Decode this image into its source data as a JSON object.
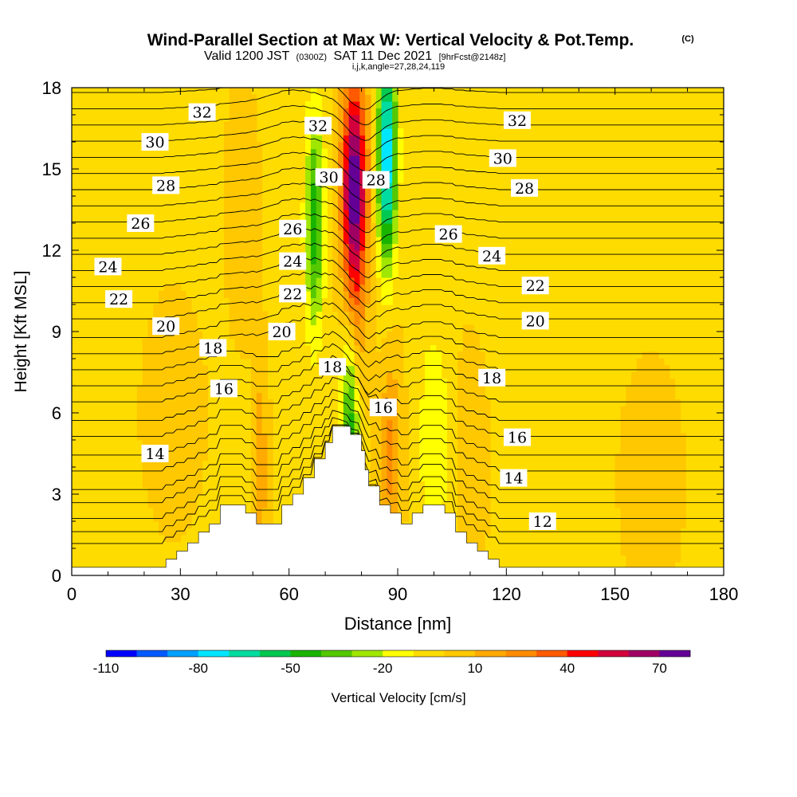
{
  "header": {
    "title": "Wind-Parallel Section at Max W: Vertical Velocity & Pot.Temp.",
    "copyright": "(C)",
    "valid_prefix": "Valid 1200 JST",
    "valid_utc": "(0300Z)",
    "valid_date": "SAT 11 Dec 2021",
    "forecast": "[9hrFcst@2148z]",
    "indices": "i,j,k,angle=27,28,24,119"
  },
  "colorbar": {
    "label": "Vertical Velocity [cm/s]",
    "tick_labels": [
      "-110",
      "-80",
      "-50",
      "-20",
      "10",
      "40",
      "70"
    ],
    "tick_values": [
      -110,
      -80,
      -50,
      -20,
      10,
      40,
      70
    ],
    "levels": [
      -110,
      -100,
      -90,
      -80,
      -70,
      -60,
      -50,
      -40,
      -30,
      -20,
      -10,
      0,
      10,
      20,
      30,
      40,
      50,
      60,
      70,
      80
    ],
    "colors": [
      "#0000ff",
      "#005aff",
      "#00a0ff",
      "#00e6ff",
      "#00dca0",
      "#00c850",
      "#19b400",
      "#55c800",
      "#a0e600",
      "#ffff00",
      "#ffdc00",
      "#ffc800",
      "#ffaa00",
      "#ff8c00",
      "#ff5a00",
      "#ff0000",
      "#d2003c",
      "#a00064",
      "#640096"
    ]
  },
  "chart_data": {
    "type": "contour",
    "title": "Wind-Parallel Section at Max W: Vertical Velocity & Pot.Temp.",
    "xlabel": "Distance [nm]",
    "ylabel": "Height [Kft MSL]",
    "xlim": [
      0,
      180
    ],
    "ylim": [
      0,
      18
    ],
    "x_ticks": [
      0,
      30,
      60,
      90,
      120,
      150,
      180
    ],
    "y_ticks": [
      0,
      3,
      6,
      9,
      12,
      15,
      18
    ],
    "fill_variable": "Vertical Velocity [cm/s]",
    "contour_variable": "Potential temperature",
    "isentrope_base_heights": [
      0.95,
      1.4,
      1.9,
      2.5,
      3.0,
      3.7,
      4.3,
      5.0,
      5.6,
      6.3,
      6.9,
      7.5,
      8.1,
      8.7,
      9.4,
      10.0,
      10.6,
      11.2,
      11.8,
      12.4,
      13.0,
      13.6,
      14.2,
      14.8,
      15.4,
      16.0,
      16.6,
      17.2,
      17.8
    ],
    "contour_labels": [
      {
        "text": "32",
        "x": 36,
        "y": 17.1
      },
      {
        "text": "30",
        "x": 23,
        "y": 16.0
      },
      {
        "text": "28",
        "x": 26,
        "y": 14.4
      },
      {
        "text": "26",
        "x": 19,
        "y": 13.0
      },
      {
        "text": "24",
        "x": 10,
        "y": 11.4
      },
      {
        "text": "22",
        "x": 13,
        "y": 10.2
      },
      {
        "text": "20",
        "x": 26,
        "y": 9.2
      },
      {
        "text": "18",
        "x": 39,
        "y": 8.4
      },
      {
        "text": "16",
        "x": 42,
        "y": 6.9
      },
      {
        "text": "14",
        "x": 23,
        "y": 4.5
      },
      {
        "text": "32",
        "x": 68,
        "y": 16.6
      },
      {
        "text": "30",
        "x": 71,
        "y": 14.7
      },
      {
        "text": "28",
        "x": 84,
        "y": 14.6
      },
      {
        "text": "26",
        "x": 61,
        "y": 12.8
      },
      {
        "text": "24",
        "x": 61,
        "y": 11.6
      },
      {
        "text": "22",
        "x": 61,
        "y": 10.4
      },
      {
        "text": "20",
        "x": 58,
        "y": 9.0
      },
      {
        "text": "18",
        "x": 72,
        "y": 7.7
      },
      {
        "text": "16",
        "x": 86,
        "y": 6.2
      },
      {
        "text": "26",
        "x": 104,
        "y": 12.6
      },
      {
        "text": "24",
        "x": 116,
        "y": 11.8
      },
      {
        "text": "22",
        "x": 128,
        "y": 10.7
      },
      {
        "text": "20",
        "x": 128,
        "y": 9.4
      },
      {
        "text": "18",
        "x": 116,
        "y": 7.3
      },
      {
        "text": "16",
        "x": 123,
        "y": 5.1
      },
      {
        "text": "14",
        "x": 122,
        "y": 3.6
      },
      {
        "text": "12",
        "x": 130,
        "y": 2.0
      },
      {
        "text": "32",
        "x": 123,
        "y": 16.8
      },
      {
        "text": "30",
        "x": 119,
        "y": 15.4
      },
      {
        "text": "28",
        "x": 125,
        "y": 14.3
      }
    ],
    "terrain": [
      [
        0,
        0.3
      ],
      [
        26,
        0.3
      ],
      [
        26,
        0.6
      ],
      [
        29,
        0.6
      ],
      [
        29,
        0.9
      ],
      [
        32,
        0.9
      ],
      [
        32,
        1.2
      ],
      [
        35,
        1.2
      ],
      [
        35,
        1.6
      ],
      [
        38,
        1.6
      ],
      [
        38,
        1.9
      ],
      [
        41,
        1.9
      ],
      [
        41,
        2.6
      ],
      [
        48,
        2.6
      ],
      [
        48,
        2.3
      ],
      [
        51,
        2.3
      ],
      [
        51,
        1.9
      ],
      [
        58,
        1.9
      ],
      [
        58,
        2.6
      ],
      [
        61,
        2.6
      ],
      [
        61,
        3.0
      ],
      [
        64,
        3.0
      ],
      [
        64,
        3.6
      ],
      [
        67,
        3.6
      ],
      [
        67,
        4.3
      ],
      [
        70,
        4.3
      ],
      [
        70,
        4.9
      ],
      [
        72,
        4.9
      ],
      [
        72,
        5.5
      ],
      [
        77,
        5.5
      ],
      [
        77,
        5.2
      ],
      [
        80,
        5.2
      ],
      [
        80,
        4.6
      ],
      [
        81,
        4.6
      ],
      [
        81,
        3.9
      ],
      [
        82,
        3.9
      ],
      [
        82,
        3.3
      ],
      [
        85,
        3.3
      ],
      [
        85,
        2.6
      ],
      [
        88,
        2.6
      ],
      [
        88,
        2.3
      ],
      [
        91,
        2.3
      ],
      [
        91,
        1.9
      ],
      [
        94,
        1.9
      ],
      [
        94,
        2.3
      ],
      [
        97,
        2.3
      ],
      [
        97,
        2.6
      ],
      [
        103,
        2.6
      ],
      [
        103,
        2.3
      ],
      [
        106,
        2.3
      ],
      [
        106,
        1.6
      ],
      [
        109,
        1.6
      ],
      [
        109,
        1.2
      ],
      [
        112,
        1.2
      ],
      [
        112,
        0.9
      ],
      [
        115,
        0.9
      ],
      [
        115,
        0.6
      ],
      [
        118,
        0.6
      ],
      [
        118,
        0.3
      ],
      [
        180,
        0.3
      ]
    ],
    "velocity_features": [
      {
        "x": 78,
        "y": 14.5,
        "w": 3.5,
        "value": 78
      },
      {
        "x": 67,
        "y": 13.0,
        "w": 2.5,
        "value": -45
      },
      {
        "x": 87,
        "y": 15.5,
        "w": 2.5,
        "value": -80
      },
      {
        "x": 78,
        "y": 9.0,
        "w": 3.0,
        "value": 28
      },
      {
        "x": 77,
        "y": 6.0,
        "w": 2.5,
        "value": -55
      },
      {
        "x": 88,
        "y": 4.5,
        "w": 3.0,
        "value": 25
      },
      {
        "x": 52,
        "y": 3.8,
        "w": 2.0,
        "value": 20
      },
      {
        "x": 47,
        "y": 13.5,
        "w": 4.0,
        "value": 12
      },
      {
        "x": 28,
        "y": 6.0,
        "w": 8.0,
        "value": 8
      },
      {
        "x": 100,
        "y": 5.0,
        "w": 4.0,
        "value": -18
      },
      {
        "x": 110,
        "y": 4.0,
        "w": 4.0,
        "value": 12
      },
      {
        "x": 160,
        "y": 3.5,
        "w": 8.0,
        "value": 8
      }
    ]
  }
}
